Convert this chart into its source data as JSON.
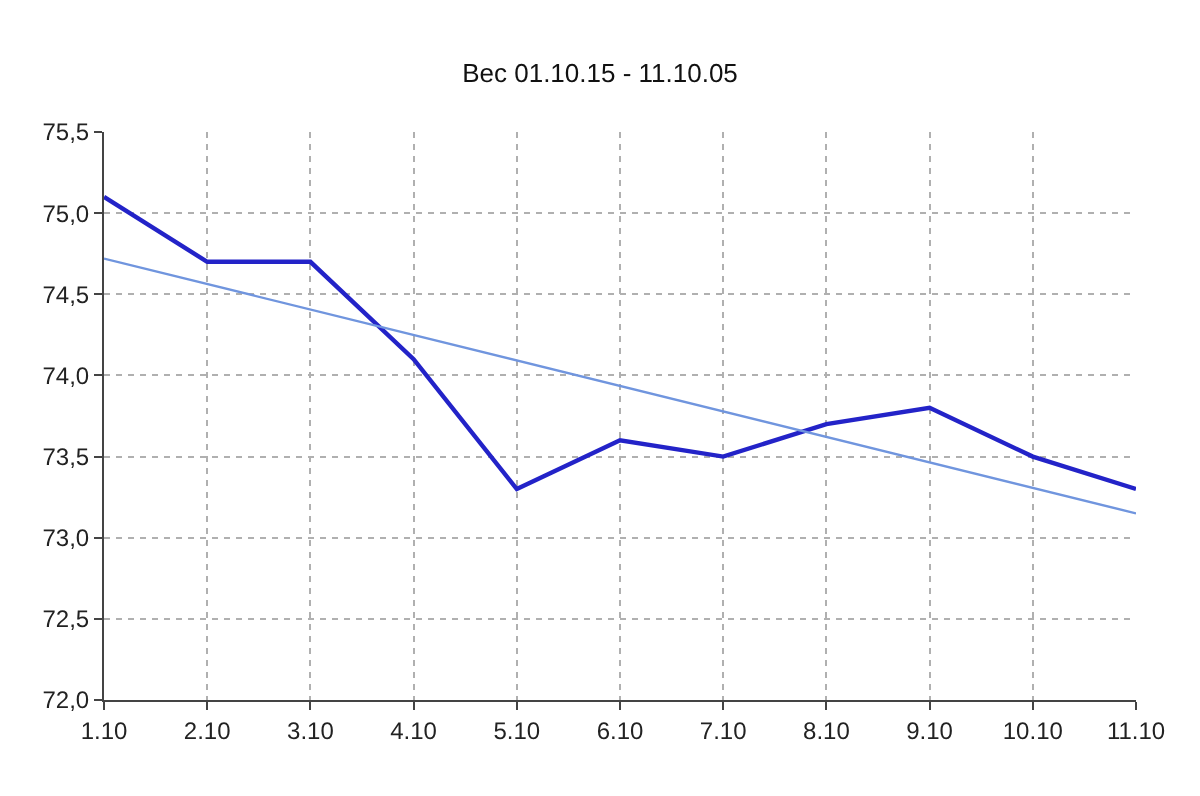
{
  "chart_data": {
    "type": "line",
    "title": "Вес 01.10.15 - 11.10.05",
    "categories": [
      "1.10",
      "2.10",
      "3.10",
      "4.10",
      "5.10",
      "6.10",
      "7.10",
      "8.10",
      "9.10",
      "10.10",
      "11.10"
    ],
    "series": [
      {
        "color": "#2323c8",
        "values": [
          75.1,
          74.7,
          74.7,
          74.1,
          73.3,
          73.6,
          73.5,
          73.7,
          73.8,
          73.5,
          73.3
        ]
      },
      {
        "type": "line",
        "color": "#7095de",
        "x": [
          "1.10",
          "11.10"
        ],
        "values": [
          74.72,
          73.15
        ]
      }
    ],
    "ylim": [
      72.0,
      75.5
    ],
    "yticks": [
      {
        "value": 72.0,
        "label": "72,0"
      },
      {
        "value": 72.5,
        "label": "72,5"
      },
      {
        "value": 73.0,
        "label": "73,0"
      },
      {
        "value": 73.5,
        "label": "73,5"
      },
      {
        "value": 74.0,
        "label": "74,0"
      },
      {
        "value": 74.5,
        "label": "74,5"
      },
      {
        "value": 75.0,
        "label": "75,0"
      },
      {
        "value": 75.5,
        "label": "75,5"
      }
    ],
    "grid": true,
    "marker": "none",
    "line_style": "solid"
  }
}
